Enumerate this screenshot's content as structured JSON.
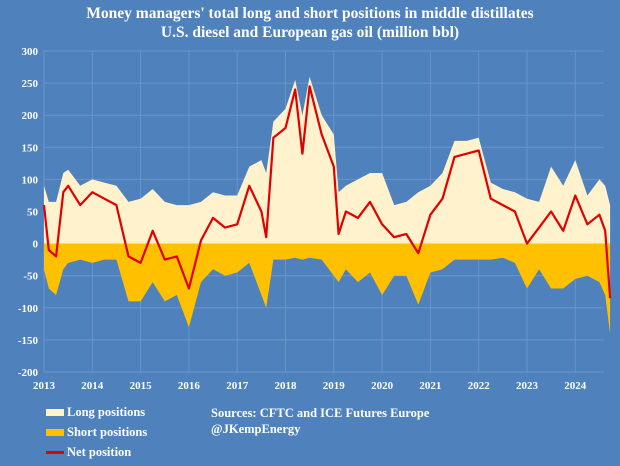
{
  "chart_data": {
    "type": "area",
    "title": "Money managers' total long and short positions in middle distillates",
    "subtitle": "U.S. diesel and European gas oil  (million bbl)",
    "xlabel": "",
    "ylabel": "",
    "ylim": [
      -200,
      300
    ],
    "xlim": [
      2013,
      2024.75
    ],
    "y_ticks": [
      "300",
      "250",
      "200",
      "150",
      "100",
      "50",
      "0",
      "-50",
      "-100",
      "-150",
      "-200"
    ],
    "x_ticks": [
      "2013",
      "2014",
      "2015",
      "2016",
      "2017",
      "2018",
      "2019",
      "2020",
      "2021",
      "2022",
      "2023",
      "2024"
    ],
    "grid": true,
    "legend_position": "bottom-left",
    "x": [
      2013.0,
      2013.1,
      2013.25,
      2013.4,
      2013.5,
      2013.75,
      2014.0,
      2014.25,
      2014.5,
      2014.75,
      2015.0,
      2015.25,
      2015.5,
      2015.75,
      2016.0,
      2016.25,
      2016.5,
      2016.75,
      2017.0,
      2017.25,
      2017.5,
      2017.6,
      2017.75,
      2018.0,
      2018.2,
      2018.35,
      2018.5,
      2018.75,
      2019.0,
      2019.1,
      2019.25,
      2019.5,
      2019.75,
      2020.0,
      2020.25,
      2020.5,
      2020.75,
      2021.0,
      2021.25,
      2021.5,
      2021.75,
      2022.0,
      2022.25,
      2022.5,
      2022.75,
      2023.0,
      2023.25,
      2023.5,
      2023.75,
      2024.0,
      2024.25,
      2024.5,
      2024.62,
      2024.72
    ],
    "series": [
      {
        "name": "Long positions",
        "color": "#fff2cc",
        "values": [
          90,
          65,
          65,
          110,
          115,
          90,
          100,
          95,
          90,
          65,
          70,
          85,
          65,
          60,
          60,
          65,
          80,
          75,
          75,
          120,
          130,
          110,
          190,
          210,
          255,
          200,
          260,
          200,
          170,
          80,
          90,
          100,
          110,
          110,
          60,
          65,
          80,
          90,
          110,
          160,
          160,
          165,
          95,
          85,
          80,
          70,
          65,
          120,
          90,
          130,
          75,
          100,
          90,
          60
        ]
      },
      {
        "name": "Short positions",
        "color": "#ffc000",
        "values": [
          -40,
          -70,
          -80,
          -40,
          -30,
          -25,
          -30,
          -25,
          -25,
          -90,
          -90,
          -60,
          -90,
          -80,
          -130,
          -60,
          -40,
          -50,
          -45,
          -30,
          -80,
          -100,
          -25,
          -25,
          -22,
          -25,
          -22,
          -25,
          -50,
          -60,
          -40,
          -60,
          -45,
          -80,
          -50,
          -50,
          -95,
          -45,
          -40,
          -25,
          -25,
          -25,
          -25,
          -22,
          -30,
          -70,
          -40,
          -70,
          -70,
          -55,
          -50,
          -60,
          -80,
          -140
        ]
      },
      {
        "name": "Net position",
        "color": "#ff0000",
        "values": [
          60,
          -10,
          -20,
          80,
          90,
          60,
          80,
          70,
          60,
          -20,
          -30,
          20,
          -25,
          -20,
          -70,
          5,
          40,
          25,
          30,
          90,
          50,
          10,
          165,
          180,
          240,
          140,
          245,
          170,
          120,
          15,
          50,
          40,
          65,
          30,
          10,
          15,
          -15,
          45,
          70,
          135,
          140,
          145,
          70,
          60,
          50,
          0,
          25,
          50,
          20,
          75,
          30,
          45,
          20,
          -85
        ]
      }
    ],
    "annotations": [
      "Sources: CFTC and ICE Futures Europe",
      "@JKempEnergy"
    ]
  }
}
